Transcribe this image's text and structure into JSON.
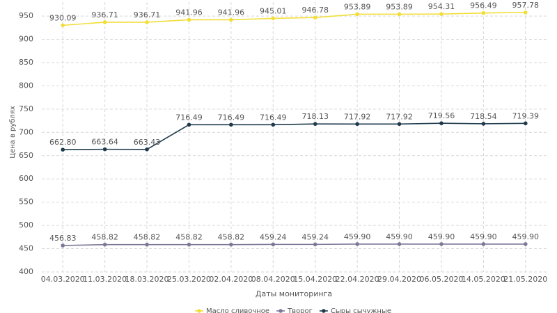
{
  "chart_data": {
    "type": "line",
    "x_label": "Даты мониторинга",
    "y_label": "Цена в рублях",
    "categories": [
      "04.03.2020",
      "11.03.2020",
      "18.03.2020",
      "25.03.2020",
      "02.04.2020",
      "08.04.2020",
      "15.04.2020",
      "22.04.2020",
      "29.04.2020",
      "06.05.2020",
      "14.05.2020",
      "21.05.2020"
    ],
    "series": [
      {
        "name": "Масло сливочное",
        "color": "#f2de3a",
        "values": [
          930.09,
          936.71,
          936.71,
          941.96,
          941.96,
          945.01,
          946.78,
          953.89,
          953.89,
          954.31,
          956.49,
          957.78
        ],
        "value_labels": [
          "930.09",
          "936.71",
          "936.71",
          "941.96",
          "941.96",
          "945.01",
          "946.78",
          "953.89",
          "953.89",
          "954.31",
          "956.49",
          "957.78"
        ]
      },
      {
        "name": "Творог",
        "color": "#7c7898",
        "values": [
          456.83,
          458.82,
          458.82,
          458.82,
          458.82,
          459.24,
          459.24,
          459.9,
          459.9,
          459.9,
          459.9,
          459.9
        ],
        "value_labels": [
          "456.83",
          "458.82",
          "458.82",
          "458.82",
          "458.82",
          "459.24",
          "459.24",
          "459.90",
          "459.90",
          "459.90",
          "459.90",
          "459.90"
        ]
      },
      {
        "name": "Сыры сычужные",
        "color": "#1e3a4c",
        "values": [
          662.8,
          663.64,
          663.43,
          716.49,
          716.49,
          716.49,
          718.13,
          717.92,
          717.92,
          719.56,
          718.54,
          719.39
        ],
        "value_labels": [
          "662.80",
          "663.64",
          "663.43",
          "716.49",
          "716.49",
          "716.49",
          "718.13",
          "717.92",
          "717.92",
          "719.56",
          "718.54",
          "719.39"
        ]
      }
    ],
    "ylim": [
      400,
      980
    ],
    "yticks": [
      400,
      450,
      500,
      550,
      600,
      650,
      700,
      750,
      800,
      850,
      900,
      950
    ],
    "grid": true,
    "legend": "bottom"
  }
}
